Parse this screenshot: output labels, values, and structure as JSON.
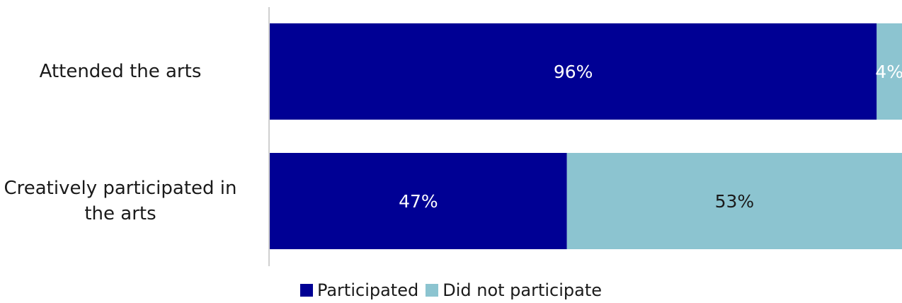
{
  "chart_data": {
    "type": "bar",
    "orientation": "horizontal",
    "stacked": true,
    "categories": [
      "Attended the arts",
      "Creatively participated in the arts"
    ],
    "series": [
      {
        "name": "Participated",
        "values": [
          96,
          47
        ],
        "labels": [
          "96%",
          "47%"
        ],
        "color": "#000094"
      },
      {
        "name": "Did not participate",
        "values": [
          4,
          53
        ],
        "labels": [
          "4%",
          "53%"
        ],
        "color": "#8cc4d0"
      }
    ],
    "xlim": [
      0,
      100
    ],
    "grid": false,
    "legend_position": "bottom"
  }
}
